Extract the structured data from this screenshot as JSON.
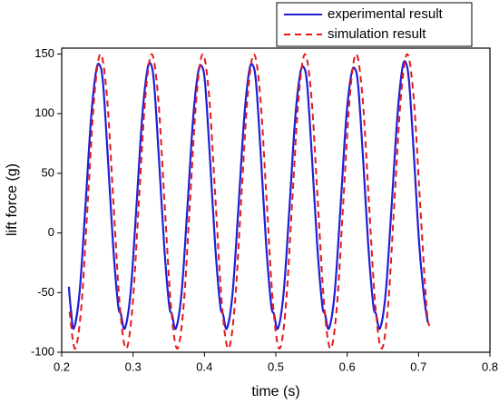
{
  "chart_data": {
    "type": "line",
    "x_label": "time (s)",
    "y_label": "lift force (g)",
    "xlim": [
      0.2,
      0.8
    ],
    "xticks": [
      0.2,
      0.3,
      0.4,
      0.5,
      0.6,
      0.7,
      0.8
    ],
    "ylim": [
      -100,
      155
    ],
    "yticks": [
      -100,
      -50,
      0,
      50,
      100,
      150
    ],
    "legend": "upper right",
    "series": [
      {
        "name": "experimental result",
        "color": "#1f1fd6",
        "dash": "solid",
        "x": [
          0.21,
          0.213,
          0.217,
          0.225,
          0.233,
          0.241,
          0.248,
          0.253,
          0.258,
          0.265,
          0.272,
          0.279,
          0.283,
          0.2885,
          0.2965,
          0.3045,
          0.3125,
          0.3195,
          0.3245,
          0.3295,
          0.3365,
          0.3435,
          0.3505,
          0.3545,
          0.36,
          0.368,
          0.376,
          0.384,
          0.391,
          0.396,
          0.401,
          0.408,
          0.415,
          0.422,
          0.426,
          0.4315,
          0.4395,
          0.4475,
          0.4555,
          0.4625,
          0.4675,
          0.4725,
          0.4795,
          0.4865,
          0.4935,
          0.4975,
          0.503,
          0.511,
          0.519,
          0.527,
          0.534,
          0.539,
          0.544,
          0.551,
          0.558,
          0.565,
          0.569,
          0.5745,
          0.5825,
          0.5905,
          0.5985,
          0.6055,
          0.6105,
          0.6155,
          0.6225,
          0.6295,
          0.6365,
          0.6405,
          0.646,
          0.654,
          0.662,
          0.67,
          0.677,
          0.682,
          0.687,
          0.694,
          0.701,
          0.708,
          0.713
        ],
        "values": [
          -45,
          -65,
          -80,
          -50,
          20,
          95,
          135,
          141,
          125,
          60,
          -10,
          -60,
          -68,
          -80,
          -50,
          20,
          95,
          135,
          142,
          125,
          60,
          -10,
          -60,
          -68,
          -80,
          -50,
          20,
          95,
          134,
          140,
          125,
          60,
          -10,
          -60,
          -68,
          -80,
          -50,
          20,
          95,
          135,
          141,
          125,
          60,
          -10,
          -60,
          -68,
          -80,
          -50,
          20,
          95,
          133,
          139,
          124,
          60,
          -10,
          -60,
          -68,
          -80,
          -50,
          20,
          95,
          132,
          138,
          123,
          60,
          -10,
          -60,
          -68,
          -80,
          -50,
          20,
          95,
          137,
          143,
          125,
          60,
          -10,
          -55,
          -75
        ]
      },
      {
        "name": "simulation result",
        "color": "#e41a1a",
        "dash": "dashed",
        "x": [
          0.211,
          0.2187,
          0.2277,
          0.2366,
          0.2456,
          0.2545,
          0.2635,
          0.2724,
          0.2814,
          0.2903,
          0.2993,
          0.3082,
          0.3172,
          0.3261,
          0.3351,
          0.344,
          0.353,
          0.3619,
          0.3709,
          0.3798,
          0.3888,
          0.3977,
          0.4067,
          0.4156,
          0.4246,
          0.4335,
          0.4425,
          0.4514,
          0.4604,
          0.4693,
          0.4783,
          0.4872,
          0.4962,
          0.5051,
          0.5141,
          0.523,
          0.532,
          0.5409,
          0.5499,
          0.5588,
          0.5678,
          0.5767,
          0.5857,
          0.5946,
          0.6036,
          0.6125,
          0.6215,
          0.6304,
          0.6394,
          0.6483,
          0.6573,
          0.6662,
          0.6752,
          0.6841,
          0.6931,
          0.702,
          0.711,
          0.715
        ],
        "values": [
          -66,
          -97,
          -60.8,
          26.5,
          113.8,
          150,
          113.8,
          26.5,
          -60.8,
          -97,
          -60.8,
          26.5,
          113.8,
          150,
          113.8,
          26.5,
          -60.8,
          -97,
          -60.8,
          26.5,
          113.8,
          150,
          113.8,
          26.5,
          -60.8,
          -97,
          -60.8,
          26.5,
          113.8,
          150,
          113.8,
          26.5,
          -60.8,
          -97,
          -60.8,
          26.5,
          113.8,
          150,
          113.8,
          26.5,
          -60.8,
          -97,
          -60.8,
          26.5,
          113.8,
          150,
          113.8,
          26.5,
          -60.8,
          -97,
          -60.8,
          26.5,
          113.8,
          150,
          113.8,
          26.5,
          -60.8,
          -78
        ]
      }
    ]
  }
}
